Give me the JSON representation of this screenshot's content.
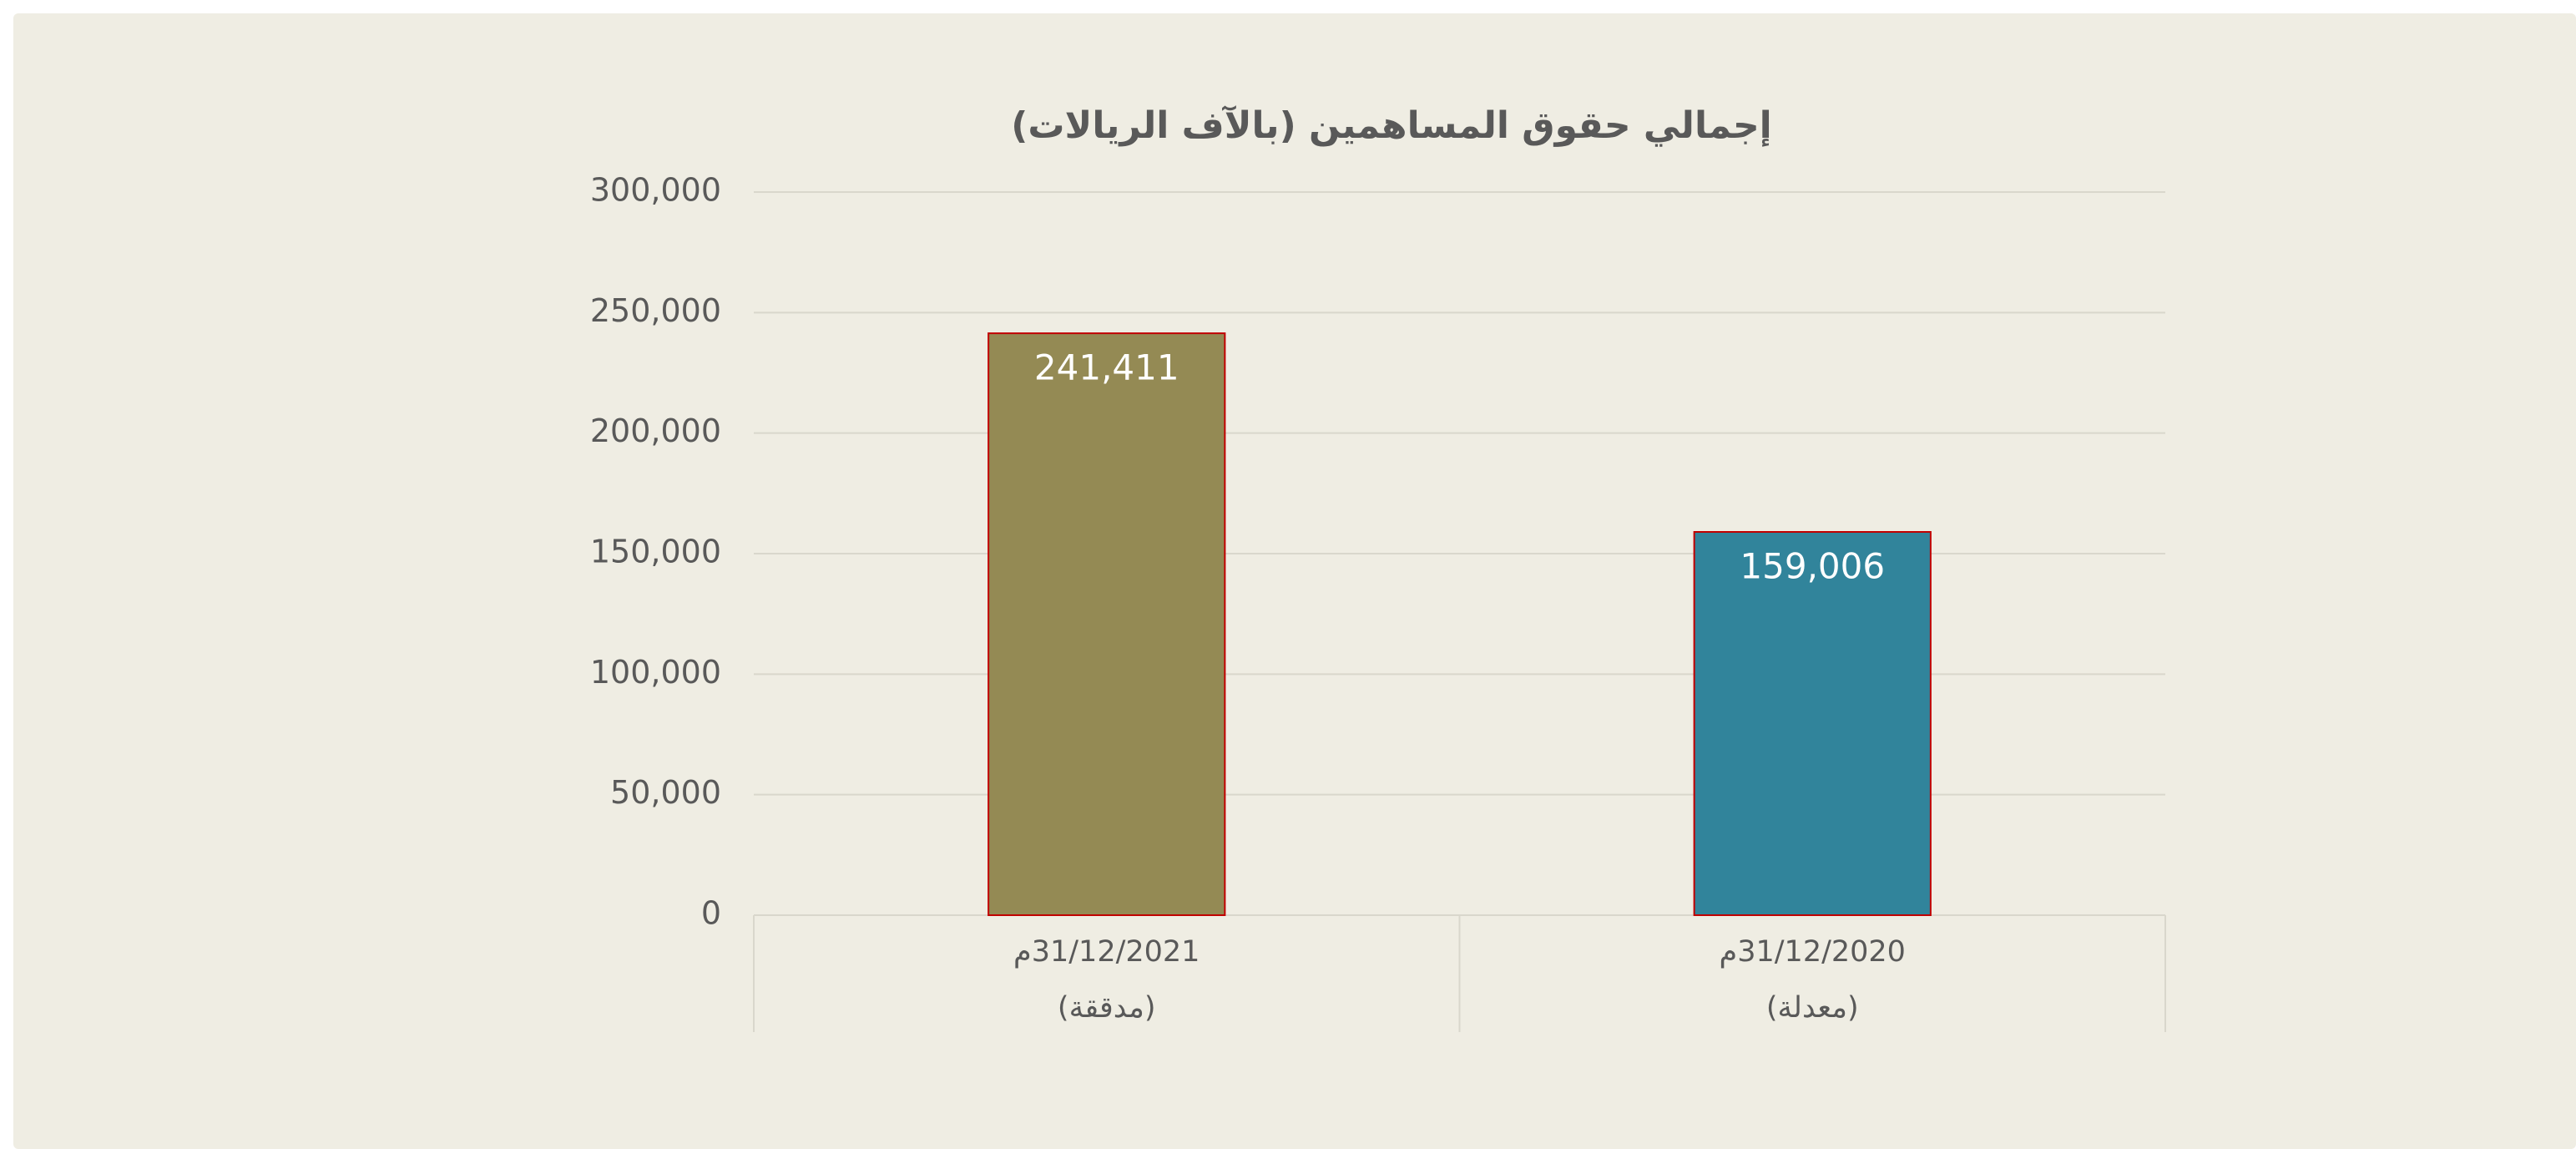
{
  "chart_data": {
    "type": "bar",
    "title": "إجمالي حقوق المساهمين (بالآف الريالات)",
    "categories": [
      [
        "31/12/2021م",
        "(مدققة)"
      ],
      [
        "31/12/2020م",
        "(معدلة)"
      ]
    ],
    "values": [
      241411,
      159006
    ],
    "value_labels": [
      "241,411",
      "159,006"
    ],
    "colors": [
      "#948a54",
      "#31849b"
    ],
    "ylim": [
      0,
      300000
    ],
    "yticks": [
      0,
      {
        "value": 50000,
        "label": "50,000"
      },
      {
        "value": 100000,
        "label": "100,000"
      },
      {
        "value": 150000,
        "label": "150,000"
      },
      {
        "value": 200000,
        "label": "200,000"
      },
      {
        "value": 250000,
        "label": "250,000"
      },
      {
        "value": 300000,
        "label": "300,000"
      }
    ],
    "grid": true
  }
}
